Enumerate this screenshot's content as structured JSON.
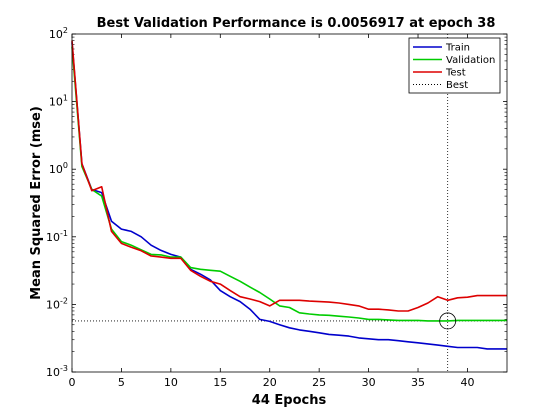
{
  "chart_data": {
    "type": "line",
    "title": "Best Validation Performance is 0.0056917 at epoch 38",
    "xlabel": "44 Epochs",
    "ylabel": "Mean Squared Error  (mse)",
    "xlim": [
      0,
      44
    ],
    "ylim": [
      0.001,
      100
    ],
    "yscale": "log",
    "xticks": [
      0,
      5,
      10,
      15,
      20,
      25,
      30,
      35,
      40
    ],
    "yticks": [
      {
        "value": 0.001,
        "base": "10",
        "exp": "-3"
      },
      {
        "value": 0.01,
        "base": "10",
        "exp": "-2"
      },
      {
        "value": 0.1,
        "base": "10",
        "exp": "-1"
      },
      {
        "value": 1,
        "base": "10",
        "exp": "0"
      },
      {
        "value": 10,
        "base": "10",
        "exp": "1"
      },
      {
        "value": 100,
        "base": "10",
        "exp": "2"
      }
    ],
    "grid": false,
    "legend_position": "top-right",
    "best": {
      "epoch": 38,
      "value": 0.0056917,
      "label": "Best",
      "color": "#000000"
    },
    "series": [
      {
        "name": "Train",
        "color": "#0000cc",
        "x": [
          0,
          1,
          2,
          3,
          4,
          5,
          6,
          7,
          8,
          9,
          10,
          11,
          12,
          13,
          14,
          15,
          16,
          17,
          18,
          19,
          20,
          21,
          22,
          23,
          24,
          25,
          26,
          27,
          28,
          29,
          30,
          31,
          32,
          33,
          34,
          35,
          36,
          37,
          38,
          39,
          40,
          41,
          42,
          43,
          44
        ],
        "y": [
          75,
          1.2,
          0.5,
          0.45,
          0.17,
          0.13,
          0.12,
          0.1,
          0.075,
          0.063,
          0.055,
          0.05,
          0.033,
          0.028,
          0.023,
          0.016,
          0.013,
          0.011,
          0.0085,
          0.006,
          0.0056,
          0.005,
          0.0045,
          0.0042,
          0.004,
          0.0038,
          0.0036,
          0.0035,
          0.0034,
          0.0032,
          0.0031,
          0.003,
          0.003,
          0.0029,
          0.0028,
          0.0027,
          0.0026,
          0.0025,
          0.0024,
          0.0023,
          0.0023,
          0.0023,
          0.0022,
          0.0022,
          0.0022
        ]
      },
      {
        "name": "Validation",
        "color": "#00cc00",
        "x": [
          0,
          1,
          2,
          3,
          4,
          5,
          6,
          7,
          8,
          9,
          10,
          11,
          12,
          13,
          14,
          15,
          16,
          17,
          18,
          19,
          20,
          21,
          22,
          23,
          24,
          25,
          26,
          27,
          28,
          29,
          30,
          31,
          32,
          33,
          34,
          35,
          36,
          37,
          38,
          39,
          40,
          41,
          42,
          43,
          44
        ],
        "y": [
          65,
          1.1,
          0.5,
          0.4,
          0.13,
          0.085,
          0.075,
          0.064,
          0.055,
          0.054,
          0.05,
          0.05,
          0.035,
          0.033,
          0.032,
          0.031,
          0.026,
          0.022,
          0.018,
          0.015,
          0.012,
          0.0095,
          0.009,
          0.0075,
          0.0072,
          0.007,
          0.0069,
          0.0067,
          0.0065,
          0.0063,
          0.006,
          0.006,
          0.0059,
          0.0058,
          0.0058,
          0.0058,
          0.0057,
          0.0057,
          0.0056917,
          0.0058,
          0.0058,
          0.0058,
          0.0058,
          0.0058,
          0.0058
        ]
      },
      {
        "name": "Test",
        "color": "#dd0000",
        "x": [
          0,
          1,
          2,
          3,
          4,
          5,
          6,
          7,
          8,
          9,
          10,
          11,
          12,
          13,
          14,
          15,
          16,
          17,
          18,
          19,
          20,
          21,
          22,
          23,
          24,
          25,
          26,
          27,
          28,
          29,
          30,
          31,
          32,
          33,
          34,
          35,
          36,
          37,
          38,
          39,
          40,
          41,
          42,
          43,
          44
        ],
        "y": [
          80,
          1.2,
          0.48,
          0.55,
          0.12,
          0.08,
          0.07,
          0.062,
          0.052,
          0.05,
          0.048,
          0.048,
          0.032,
          0.026,
          0.022,
          0.02,
          0.016,
          0.013,
          0.012,
          0.011,
          0.0095,
          0.0115,
          0.0115,
          0.0115,
          0.0112,
          0.011,
          0.0108,
          0.0105,
          0.01,
          0.0095,
          0.0085,
          0.0085,
          0.0083,
          0.008,
          0.008,
          0.009,
          0.0105,
          0.013,
          0.0115,
          0.0125,
          0.0128,
          0.0135,
          0.0135,
          0.0135,
          0.0135
        ]
      }
    ]
  }
}
